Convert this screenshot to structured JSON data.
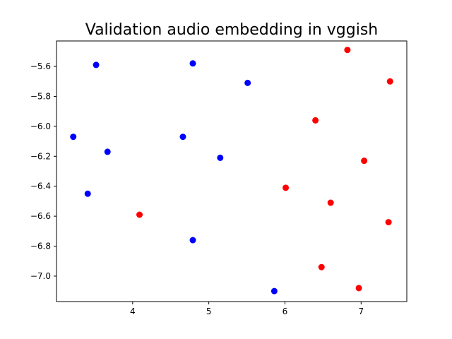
{
  "chart_data": {
    "type": "scatter",
    "title": "Validation audio embedding in vggish",
    "xlabel": "",
    "ylabel": "",
    "xlim": [
      3.0,
      7.6
    ],
    "ylim": [
      -7.17,
      -5.43
    ],
    "xticks": [
      4,
      5,
      6,
      7
    ],
    "xtick_labels": [
      "4",
      "5",
      "6",
      "7"
    ],
    "yticks": [
      -5.6,
      -5.8,
      -6.0,
      -6.2,
      -6.4,
      -6.6,
      -6.8,
      -7.0
    ],
    "ytick_labels": [
      "−5.6",
      "−5.8",
      "−6.0",
      "−6.2",
      "−6.4",
      "−6.6",
      "−6.8",
      "−7.0"
    ],
    "grid": false,
    "legend": "none",
    "series": [
      {
        "color": "#0000ff",
        "points": [
          {
            "x": 3.52,
            "y": -5.59
          },
          {
            "x": 4.79,
            "y": -5.58
          },
          {
            "x": 5.51,
            "y": -5.71
          },
          {
            "x": 3.22,
            "y": -6.07
          },
          {
            "x": 4.66,
            "y": -6.07
          },
          {
            "x": 3.67,
            "y": -6.17
          },
          {
            "x": 5.15,
            "y": -6.21
          },
          {
            "x": 3.41,
            "y": -6.45
          },
          {
            "x": 4.79,
            "y": -6.76
          },
          {
            "x": 5.86,
            "y": -7.1
          }
        ]
      },
      {
        "color": "#ff0000",
        "points": [
          {
            "x": 6.82,
            "y": -5.49
          },
          {
            "x": 7.38,
            "y": -5.7
          },
          {
            "x": 6.4,
            "y": -5.96
          },
          {
            "x": 7.04,
            "y": -6.23
          },
          {
            "x": 6.01,
            "y": -6.41
          },
          {
            "x": 6.6,
            "y": -6.51
          },
          {
            "x": 4.09,
            "y": -6.59
          },
          {
            "x": 7.36,
            "y": -6.64
          },
          {
            "x": 6.48,
            "y": -6.94
          },
          {
            "x": 6.97,
            "y": -7.08
          }
        ]
      }
    ]
  }
}
